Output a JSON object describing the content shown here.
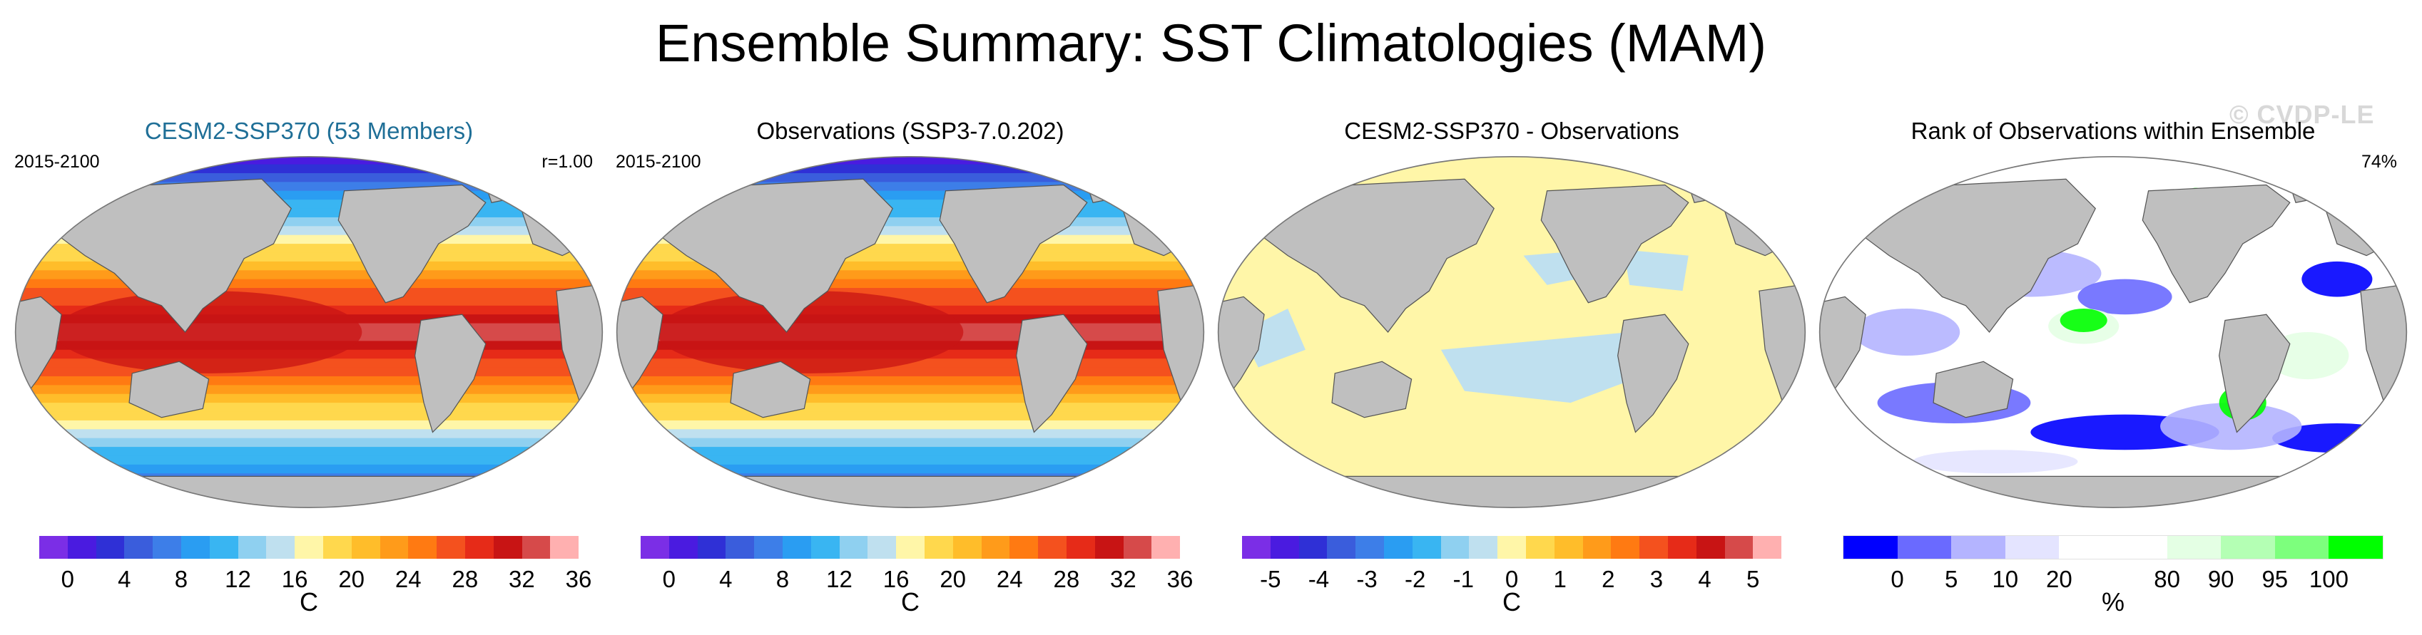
{
  "title": "Ensemble Summary: SST Climatologies (MAM)",
  "watermark": "© CVDP-LE",
  "panels": [
    {
      "id": "ensemble",
      "title": "CESM2-SSP370 (53 Members)",
      "title_color": "#1f6f97",
      "period": "2015-2100",
      "stat": "r=1.00",
      "field": "sst",
      "colorbar": {
        "colors": [
          "#7b2ee6",
          "#4a1be0",
          "#2f30d6",
          "#3a5ddc",
          "#3d7ee8",
          "#2a9df2",
          "#39b5f2",
          "#8fd0f0",
          "#bfe0ef",
          "#fff6a8",
          "#ffd84d",
          "#ffbd2a",
          "#ff9b1a",
          "#ff7a12",
          "#f4511e",
          "#e62b18",
          "#c81414",
          "#d64a4a",
          "#ffb0b0"
        ],
        "ticks": [
          "0",
          "4",
          "8",
          "12",
          "16",
          "20",
          "24",
          "28",
          "32",
          "36"
        ],
        "unit": "C"
      }
    },
    {
      "id": "observations",
      "title": "Observations (SSP3-7.0.202)",
      "title_color": "#000000",
      "period": "2015-2100",
      "stat": "",
      "field": "sst",
      "colorbar": {
        "colors": [
          "#7b2ee6",
          "#4a1be0",
          "#2f30d6",
          "#3a5ddc",
          "#3d7ee8",
          "#2a9df2",
          "#39b5f2",
          "#8fd0f0",
          "#bfe0ef",
          "#fff6a8",
          "#ffd84d",
          "#ffbd2a",
          "#ff9b1a",
          "#ff7a12",
          "#f4511e",
          "#e62b18",
          "#c81414",
          "#d64a4a",
          "#ffb0b0"
        ],
        "ticks": [
          "0",
          "4",
          "8",
          "12",
          "16",
          "20",
          "24",
          "28",
          "32",
          "36"
        ],
        "unit": "C"
      }
    },
    {
      "id": "difference",
      "title": "CESM2-SSP370 - Observations",
      "title_color": "#000000",
      "period": "",
      "stat": "",
      "field": "diff",
      "colorbar": {
        "colors": [
          "#7b2ee6",
          "#4a1be0",
          "#2f30d6",
          "#3a5ddc",
          "#3d7ee8",
          "#2a9df2",
          "#39b5f2",
          "#8fd0f0",
          "#bfe0ef",
          "#fff6a8",
          "#ffd84d",
          "#ffbd2a",
          "#ff9b1a",
          "#ff7a12",
          "#f4511e",
          "#e62b18",
          "#c81414",
          "#d64a4a",
          "#ffb0b0"
        ],
        "ticks": [
          "-5",
          "-4",
          "-3",
          "-2",
          "-1",
          "0",
          "1",
          "2",
          "3",
          "4",
          "5"
        ],
        "unit": "C"
      }
    },
    {
      "id": "rank",
      "title": "Rank of Observations within Ensemble",
      "title_color": "#000000",
      "period": "",
      "stat": "74%",
      "field": "rank",
      "colorbar": {
        "colors": [
          "#0000ff",
          "#6a6aff",
          "#b4b4ff",
          "#e4e4ff",
          "#ffffff",
          "#ffffff",
          "#e4ffe4",
          "#b4ffb4",
          "#7dff7d",
          "#00ff00"
        ],
        "ticks": [
          "0",
          "5",
          "10",
          "20",
          "80",
          "90",
          "95",
          "100"
        ],
        "tick_slots": [
          1,
          2,
          3,
          4,
          6,
          7,
          8,
          9
        ],
        "unit": "%"
      }
    }
  ]
}
